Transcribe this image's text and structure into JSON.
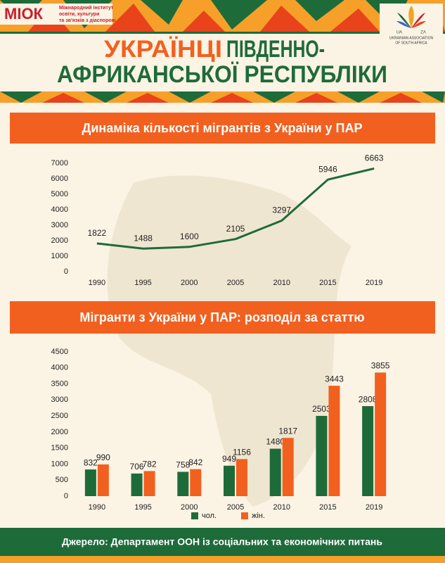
{
  "header": {
    "logo_left": "МІОК",
    "logo_left_text": [
      "Міжнародний інститут",
      "освіти, культури",
      "та зв'язків з діаспорою"
    ],
    "logo_right_tags": [
      "UA",
      "ZA"
    ],
    "logo_right_text": [
      "UKRAINIAN ASSOCIATION",
      "OF SOUTH AFRICA"
    ],
    "title": [
      "УКРАЇНЦІ",
      "ПІВДЕННО-",
      "АФРИКАНСЬКОЇ РЕСПУБЛІКИ"
    ]
  },
  "chart_data": [
    {
      "type": "line",
      "title": "Динаміка кількості мігрантів з України у ПАР",
      "categories": [
        "1990",
        "1995",
        "2000",
        "2005",
        "2010",
        "2015",
        "2019"
      ],
      "values": [
        1822,
        1488,
        1600,
        2105,
        3297,
        5946,
        6663
      ],
      "color": "#1e6b3a",
      "ylim": [
        0,
        7000
      ],
      "yticks": [
        0,
        1000,
        2000,
        3000,
        4000,
        5000,
        6000,
        7000
      ],
      "grid": false
    },
    {
      "type": "bar",
      "title": "Мігранти з України у ПАР: розподіл за статтю",
      "categories": [
        "1990",
        "1995",
        "2000",
        "2005",
        "2010",
        "2015",
        "2019"
      ],
      "series": [
        {
          "name": "чол.",
          "color": "#1e6b3a",
          "values": [
            832,
            706,
            758,
            949,
            1480,
            2503,
            2808
          ]
        },
        {
          "name": "жін.",
          "color": "#f2601f",
          "values": [
            990,
            782,
            842,
            1156,
            1817,
            3443,
            3855
          ]
        }
      ],
      "ylim": [
        0,
        4500
      ],
      "yticks": [
        0,
        500,
        1000,
        1500,
        2000,
        2500,
        3000,
        3500,
        4000,
        4500
      ],
      "grid": false,
      "legend": "bottom"
    }
  ],
  "source": "Джерело: Департамент ООН із соціальних та економічних питань"
}
